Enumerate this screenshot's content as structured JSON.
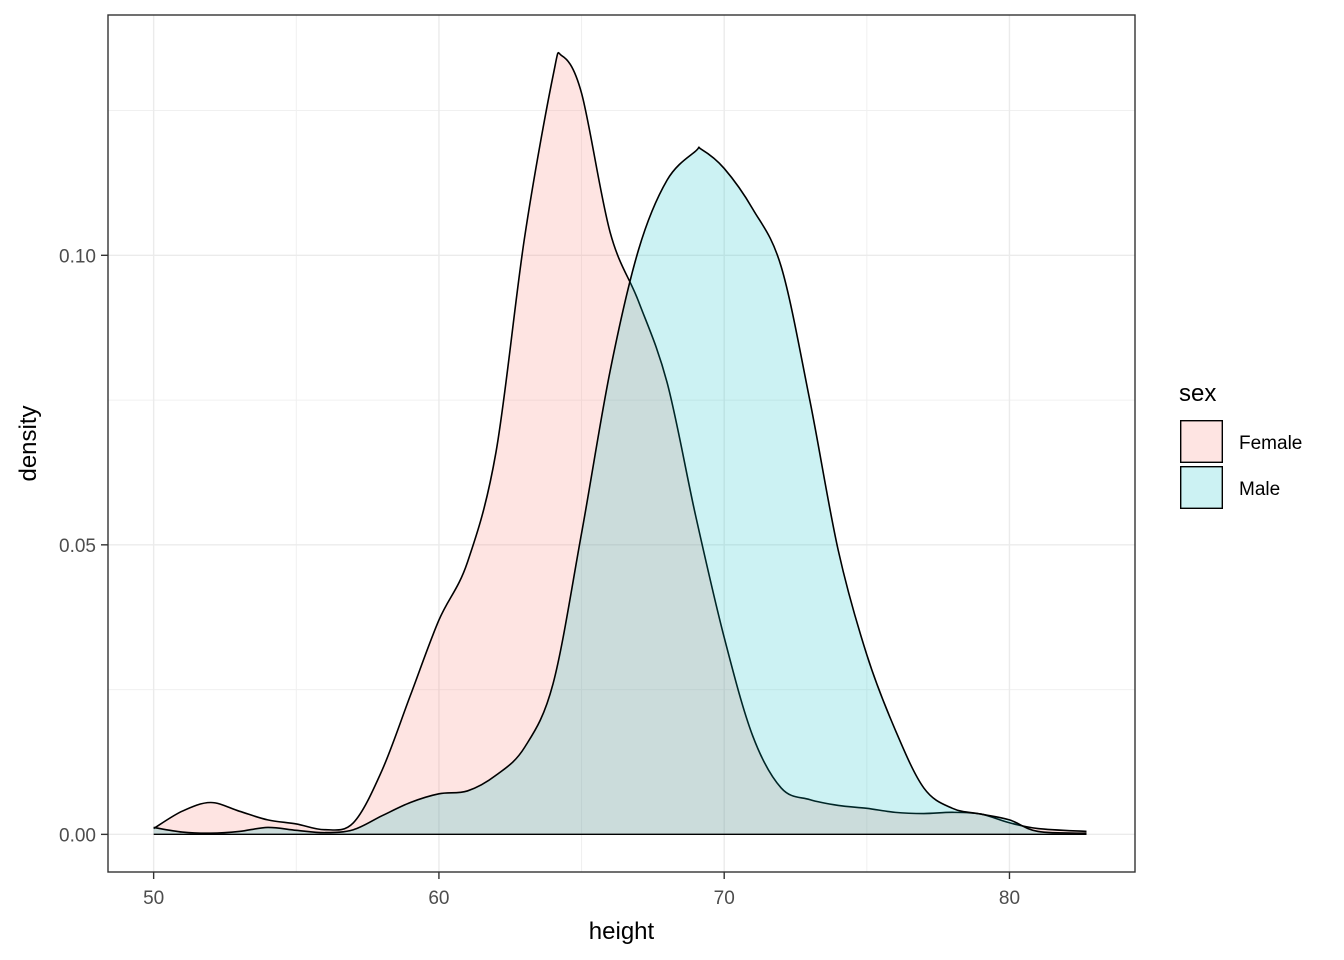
{
  "chart_data": {
    "type": "area",
    "subtype": "density",
    "title": "",
    "xlabel": "height",
    "ylabel": "density",
    "xlim": [
      48.4,
      84.4
    ],
    "ylim": [
      -0.0065,
      0.1415
    ],
    "x_ticks": [
      50,
      60,
      70,
      80
    ],
    "x_tick_labels": [
      "50",
      "60",
      "70",
      "80"
    ],
    "y_ticks": [
      0.0,
      0.05,
      0.1
    ],
    "y_tick_labels": [
      "0.00",
      "0.05",
      "0.10"
    ],
    "grid": true,
    "legend": {
      "title": "sex",
      "position": "right",
      "entries": [
        "Female",
        "Male"
      ]
    },
    "colors": {
      "Female": "#F8766D",
      "Male": "#00BFC4",
      "outline": "#000000"
    },
    "fill_alpha": 0.2,
    "series": [
      {
        "name": "Female",
        "x": [
          50,
          51,
          52,
          53,
          54,
          55,
          56,
          57,
          58,
          59,
          60,
          61,
          62,
          63,
          64,
          64.3,
          65,
          66,
          67,
          68,
          69,
          70,
          71,
          72,
          73,
          74,
          75,
          76,
          77,
          78,
          79,
          80,
          81,
          82.7
        ],
        "y": [
          0.001,
          0.004,
          0.0055,
          0.004,
          0.0025,
          0.0018,
          0.0008,
          0.002,
          0.011,
          0.024,
          0.037,
          0.047,
          0.066,
          0.103,
          0.131,
          0.1345,
          0.128,
          0.104,
          0.092,
          0.078,
          0.055,
          0.034,
          0.017,
          0.008,
          0.006,
          0.005,
          0.0045,
          0.0038,
          0.0036,
          0.0038,
          0.0035,
          0.002,
          0.001,
          0.0005
        ]
      },
      {
        "name": "Male",
        "x": [
          50,
          51,
          52,
          53,
          54,
          55,
          56,
          57,
          58,
          59,
          60,
          61,
          62,
          63,
          64,
          65,
          66,
          67,
          68,
          69,
          69.2,
          70,
          71,
          72,
          73,
          74,
          75,
          76,
          77,
          78,
          79,
          80,
          81,
          82.7
        ],
        "y": [
          0.0012,
          0.0004,
          0.0002,
          0.0005,
          0.0012,
          0.0007,
          0.0003,
          0.0008,
          0.0032,
          0.0055,
          0.007,
          0.0075,
          0.0102,
          0.015,
          0.026,
          0.052,
          0.08,
          0.101,
          0.113,
          0.118,
          0.1183,
          0.115,
          0.108,
          0.098,
          0.075,
          0.049,
          0.031,
          0.018,
          0.008,
          0.0045,
          0.0035,
          0.0025,
          0.0005,
          0.0002
        ]
      }
    ]
  }
}
